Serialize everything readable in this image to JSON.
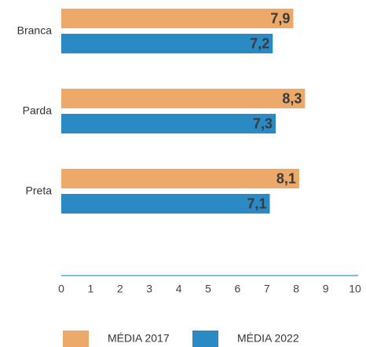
{
  "chart_data": {
    "type": "bar",
    "orientation": "horizontal",
    "categories": [
      "Branca",
      "Parda",
      "Preta"
    ],
    "series": [
      {
        "name": "MÉDIA 2017",
        "color": "#eca96a",
        "values": [
          7.9,
          8.3,
          8.1
        ],
        "value_labels": [
          "7,9",
          "8,3",
          "8,1"
        ]
      },
      {
        "name": "MÉDIA 2022",
        "color": "#2b8ac4",
        "values": [
          7.2,
          7.3,
          7.1
        ],
        "value_labels": [
          "7,2",
          "7,3",
          "7,1"
        ]
      }
    ],
    "xlim": [
      0,
      10
    ],
    "xticks": [
      0,
      1,
      2,
      3,
      4,
      5,
      6,
      7,
      8,
      9,
      10
    ]
  }
}
